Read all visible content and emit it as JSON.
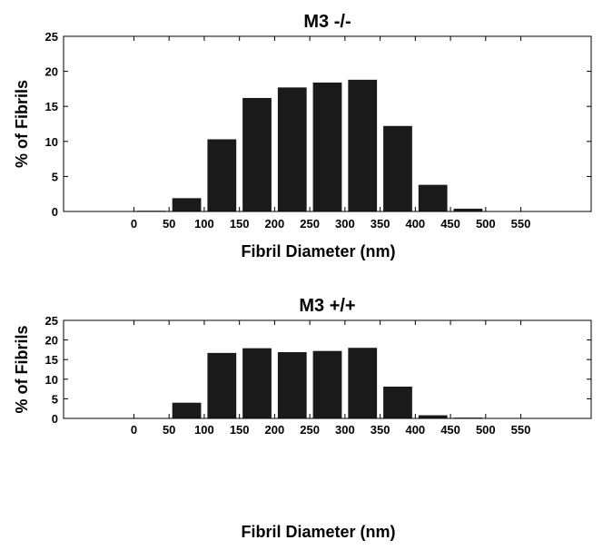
{
  "chart_data": [
    {
      "type": "bar",
      "title": "M3 -/-",
      "xlabel": "Fibril Diameter (nm)",
      "ylabel": "% of Fibrils",
      "x_ticks": [
        "0",
        "50",
        "100",
        "150",
        "200",
        "250",
        "300",
        "350",
        "400",
        "450",
        "500",
        "550"
      ],
      "y_ticks": [
        "0",
        "5",
        "10",
        "15",
        "20",
        "25"
      ],
      "ylim": [
        0,
        25
      ],
      "xlim": [
        -100,
        650
      ],
      "x": [
        25,
        75,
        125,
        175,
        225,
        275,
        325,
        375,
        425,
        475,
        525
      ],
      "values": [
        0.1,
        1.9,
        10.3,
        16.2,
        17.7,
        18.4,
        18.8,
        12.2,
        3.8,
        0.4,
        0
      ],
      "bar_color": "#1a1a1a"
    },
    {
      "type": "bar",
      "title": "M3 +/+",
      "xlabel": "Fibril Diameter (nm)",
      "ylabel": "% of Fibrils",
      "x_ticks": [
        "0",
        "50",
        "100",
        "150",
        "200",
        "250",
        "300",
        "350",
        "400",
        "450",
        "500",
        "550"
      ],
      "y_ticks": [
        "0",
        "5",
        "10",
        "15",
        "20",
        "25"
      ],
      "ylim": [
        0,
        25
      ],
      "xlim": [
        -100,
        650
      ],
      "x": [
        25,
        75,
        125,
        175,
        225,
        275,
        325,
        375,
        425,
        475,
        525
      ],
      "values": [
        0.1,
        4.0,
        16.7,
        17.9,
        16.9,
        17.2,
        18.0,
        8.1,
        0.8,
        0.2,
        0
      ],
      "bar_color": "#1a1a1a"
    }
  ]
}
